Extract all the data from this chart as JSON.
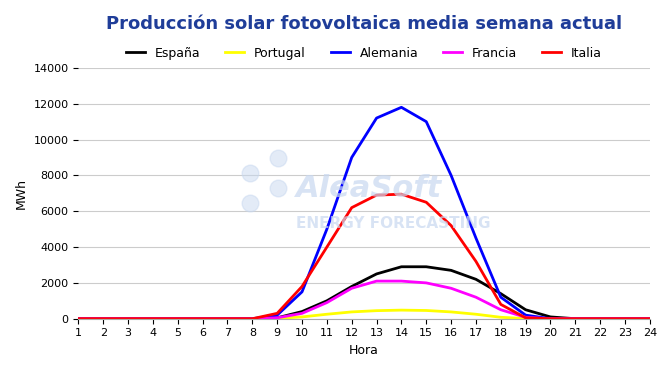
{
  "title": "Producción solar fotovoltaica media semana actual",
  "xlabel": "Hora",
  "ylabel": "MWh",
  "hours": [
    1,
    2,
    3,
    4,
    5,
    6,
    7,
    8,
    9,
    10,
    11,
    12,
    13,
    14,
    15,
    16,
    17,
    18,
    19,
    20,
    21,
    22,
    23,
    24
  ],
  "series": {
    "España": {
      "color": "#000000",
      "values": [
        0,
        0,
        0,
        0,
        0,
        0,
        0,
        0,
        50,
        400,
        1000,
        1800,
        2500,
        2900,
        2900,
        2700,
        2200,
        1400,
        500,
        100,
        0,
        0,
        0,
        0
      ]
    },
    "Portugal": {
      "color": "#ffff00",
      "values": [
        0,
        0,
        0,
        0,
        0,
        0,
        0,
        0,
        20,
        100,
        250,
        380,
        450,
        480,
        460,
        380,
        250,
        80,
        10,
        0,
        0,
        0,
        0,
        0
      ]
    },
    "Alemania": {
      "color": "#0000ff",
      "values": [
        0,
        0,
        0,
        0,
        0,
        0,
        0,
        0,
        200,
        1500,
        5000,
        9000,
        11200,
        11800,
        11000,
        8000,
        4500,
        1200,
        200,
        0,
        0,
        0,
        0,
        0
      ]
    },
    "Francia": {
      "color": "#ff00ff",
      "values": [
        0,
        0,
        0,
        0,
        0,
        0,
        0,
        0,
        50,
        300,
        900,
        1700,
        2100,
        2100,
        2000,
        1700,
        1200,
        500,
        80,
        0,
        0,
        0,
        0,
        0
      ]
    },
    "Italia": {
      "color": "#ff0000",
      "values": [
        0,
        0,
        0,
        0,
        0,
        0,
        0,
        0,
        300,
        1800,
        4000,
        6200,
        6900,
        6950,
        6500,
        5200,
        3200,
        800,
        50,
        0,
        0,
        0,
        0,
        0
      ]
    }
  },
  "ylim": [
    0,
    14000
  ],
  "yticks": [
    0,
    2000,
    4000,
    6000,
    8000,
    10000,
    12000,
    14000
  ],
  "xlim": [
    1,
    24
  ],
  "xticks": [
    1,
    2,
    3,
    4,
    5,
    6,
    7,
    8,
    9,
    10,
    11,
    12,
    13,
    14,
    15,
    16,
    17,
    18,
    19,
    20,
    21,
    22,
    23,
    24
  ],
  "title_color": "#1F3D99",
  "title_fontsize": 13,
  "background_color": "#ffffff",
  "grid_color": "#cccccc",
  "watermark_text1": "AleaSoft",
  "watermark_text2": "ENERGY FORECASTING"
}
